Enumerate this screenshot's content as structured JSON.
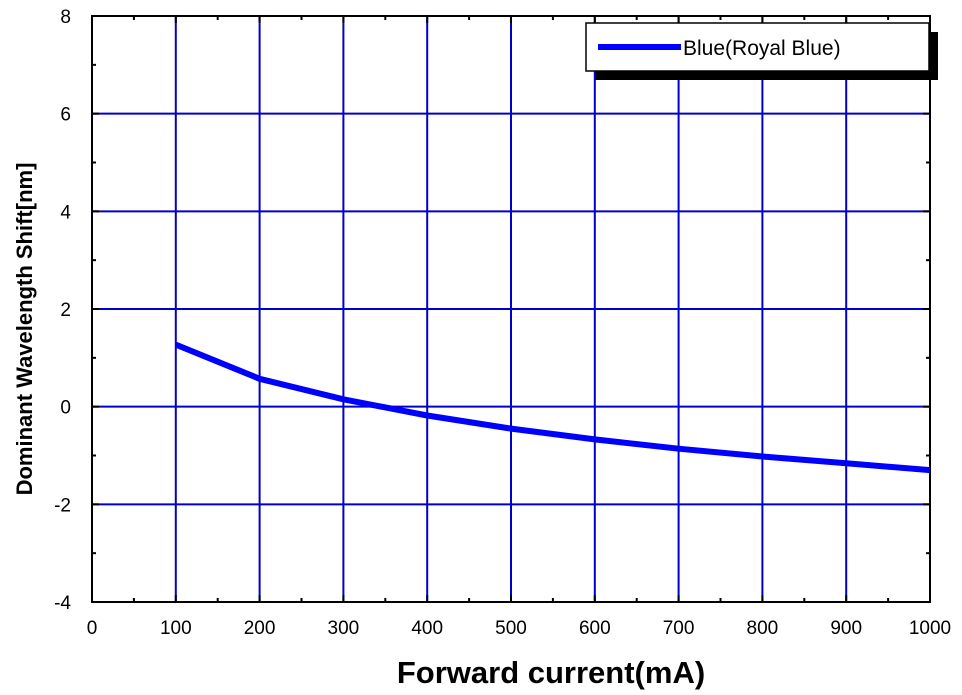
{
  "chart_data": {
    "type": "line",
    "xlabel": "Forward current(mA)",
    "ylabel": "Dominant Wavelength Shift[nm]",
    "xlim": [
      0,
      1000
    ],
    "ylim": [
      -4,
      8
    ],
    "x_ticks": [
      0,
      100,
      200,
      300,
      400,
      500,
      600,
      700,
      800,
      900,
      1000
    ],
    "y_ticks": [
      -4,
      -2,
      0,
      2,
      4,
      6,
      8
    ],
    "grid": true,
    "legend_position": "top-right",
    "series": [
      {
        "name": "Blue(Royal Blue)",
        "color": "#0000ff",
        "x": [
          100,
          200,
          300,
          400,
          500,
          600,
          700,
          800,
          900,
          1000
        ],
        "y": [
          1.27,
          0.57,
          0.15,
          -0.18,
          -0.45,
          -0.67,
          -0.86,
          -1.02,
          -1.16,
          -1.3
        ]
      }
    ]
  },
  "colors": {
    "grid": "#0000cc",
    "series": "#0000ff",
    "axis": "#000000"
  }
}
